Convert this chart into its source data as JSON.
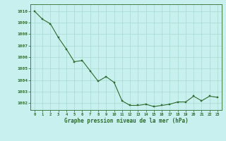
{
  "x": [
    0,
    1,
    2,
    3,
    4,
    5,
    6,
    7,
    8,
    9,
    10,
    11,
    12,
    13,
    14,
    15,
    16,
    17,
    18,
    19,
    20,
    21,
    22,
    23
  ],
  "y": [
    1010.0,
    1009.3,
    1008.9,
    1007.7,
    1006.7,
    1005.6,
    1005.7,
    1004.8,
    1003.9,
    1004.3,
    1003.8,
    1002.2,
    1001.8,
    1001.8,
    1001.9,
    1001.7,
    1001.8,
    1001.9,
    1002.1,
    1002.1,
    1002.6,
    1002.2,
    1002.6,
    1002.5
  ],
  "line_color": "#2d6a2d",
  "marker_color": "#2d6a2d",
  "bg_color": "#c8f0ee",
  "grid_color": "#a8d8d0",
  "xlabel": "Graphe pression niveau de la mer (hPa)",
  "xlabel_color": "#2d6a2d",
  "ylabel_ticks": [
    1002,
    1003,
    1004,
    1005,
    1006,
    1007,
    1008,
    1009,
    1010
  ],
  "ylim": [
    1001.4,
    1010.6
  ],
  "xlim": [
    -0.5,
    23.5
  ],
  "tick_color": "#2d6a2d",
  "font_color": "#2d6a2d"
}
